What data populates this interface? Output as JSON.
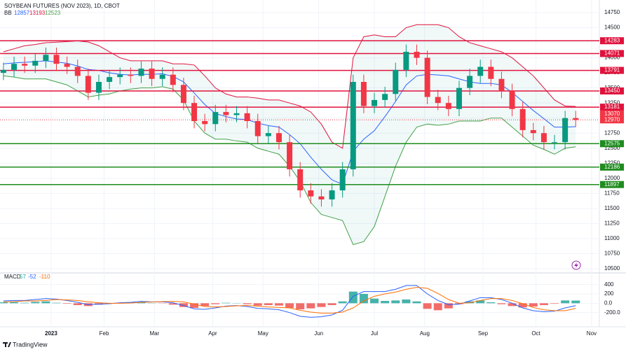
{
  "chart_data": {
    "type": "candlestick",
    "title": "SOYBEAN FUTURES (NOV 2023), 1D, CBOT",
    "bb": {
      "label": "BB",
      "values": [
        12857,
        13193,
        12523
      ]
    },
    "macd_header": {
      "label": "MACD",
      "values": [
        57,
        -52,
        -110
      ]
    },
    "brand": "TradingView",
    "x": [
      0,
      4,
      8,
      12,
      16,
      20,
      24,
      28,
      32,
      36,
      40,
      44,
      48,
      52,
      56,
      60,
      64,
      68,
      72,
      76,
      80,
      84,
      88,
      92,
      96,
      100,
      104,
      108,
      112,
      116,
      120,
      124,
      128,
      132,
      136,
      140,
      144,
      148,
      152,
      156,
      160,
      164,
      168,
      172,
      176,
      180,
      184,
      188,
      192,
      196,
      200,
      204,
      208,
      212,
      216
    ],
    "open": [
      13750,
      13800,
      13900,
      13870,
      13950,
      14050,
      13900,
      13850,
      13700,
      13420,
      13600,
      13680,
      13720,
      13700,
      13820,
      13650,
      13720,
      13550,
      13250,
      12950,
      12900,
      13100,
      13050,
      13080,
      12950,
      12700,
      12750,
      12600,
      12150,
      11800,
      11700,
      11650,
      11800,
      12150,
      13600,
      13200,
      13300,
      13400,
      13800,
      14100,
      14000,
      13350,
      13250,
      13150,
      13500,
      13700,
      13850,
      13650,
      13450,
      13150,
      12800,
      12750,
      12600,
      12600,
      13000
    ],
    "high": [
      13920,
      14020,
      14020,
      14070,
      14170,
      14170,
      14020,
      13970,
      13820,
      13720,
      13800,
      13840,
      13840,
      13940,
      13940,
      13840,
      13840,
      13670,
      13370,
      13070,
      13220,
      13220,
      13200,
      13200,
      13070,
      12870,
      12870,
      12720,
      12270,
      11920,
      11820,
      11920,
      12270,
      13720,
      13720,
      13420,
      13520,
      13920,
      14220,
      14220,
      14120,
      13470,
      13370,
      13620,
      13820,
      13970,
      13970,
      13770,
      13570,
      13270,
      12920,
      12870,
      12720,
      13120,
      13120
    ],
    "low": [
      13630,
      13680,
      13750,
      13750,
      13830,
      13780,
      13730,
      13580,
      13300,
      13300,
      13480,
      13560,
      13580,
      13580,
      13530,
      13530,
      13430,
      13130,
      12830,
      12780,
      12780,
      12930,
      12930,
      12830,
      12580,
      12580,
      12480,
      12030,
      11680,
      11580,
      11530,
      11530,
      11680,
      12030,
      13080,
      13080,
      13180,
      13280,
      13680,
      13880,
      13230,
      13130,
      13030,
      13030,
      13380,
      13580,
      13530,
      13330,
      13030,
      12680,
      12630,
      12480,
      12480,
      12480,
      12850
    ],
    "close": [
      13800,
      13900,
      13870,
      13950,
      14050,
      13900,
      13850,
      13700,
      13420,
      13600,
      13680,
      13720,
      13700,
      13820,
      13650,
      13720,
      13550,
      13250,
      12950,
      12900,
      13100,
      13050,
      13080,
      12950,
      12700,
      12750,
      12600,
      12150,
      11800,
      11700,
      11650,
      11800,
      12150,
      13600,
      13200,
      13300,
      13400,
      13800,
      14100,
      14000,
      13350,
      13250,
      13150,
      13500,
      13700,
      13850,
      13650,
      13450,
      13150,
      12800,
      12750,
      12600,
      12600,
      13000,
      12970
    ],
    "up_color": "#089981",
    "down_color": "#f23645",
    "bands": {
      "upper": [
        14100,
        14150,
        14200,
        14220,
        14250,
        14260,
        14270,
        14280,
        14262,
        14200,
        14100,
        14000,
        13950,
        13950,
        13950,
        13950,
        13900,
        13900,
        13880,
        13700,
        13500,
        13400,
        13350,
        13350,
        13330,
        13300,
        13300,
        13250,
        13200,
        13100,
        12900,
        12600,
        12500,
        14000,
        14350,
        14380,
        14350,
        14350,
        14500,
        14550,
        14550,
        14550,
        14500,
        14350,
        14250,
        14200,
        14150,
        14100,
        14000,
        13850,
        13700,
        13500,
        13300,
        13200,
        13193
      ],
      "basis": [
        13900,
        13915,
        13925,
        13935,
        13950,
        13930,
        13910,
        13865,
        13806,
        13790,
        13750,
        13725,
        13715,
        13725,
        13725,
        13735,
        13690,
        13600,
        13415,
        13225,
        13075,
        13025,
        12985,
        12975,
        12915,
        12875,
        12850,
        12725,
        12575,
        12350,
        12150,
        11975,
        11900,
        12450,
        12650,
        12790,
        13025,
        13275,
        13550,
        13700,
        13725,
        13715,
        13700,
        13650,
        13600,
        13575,
        13575,
        13550,
        13425,
        13275,
        13125,
        12990,
        12850,
        12850,
        12857
      ],
      "lower": [
        13700,
        13680,
        13650,
        13650,
        13650,
        13600,
        13550,
        13450,
        13350,
        13380,
        13400,
        13450,
        13480,
        13500,
        13500,
        13520,
        13480,
        13300,
        12950,
        12750,
        12650,
        12650,
        12620,
        12600,
        12500,
        12450,
        12400,
        12200,
        11950,
        11600,
        11400,
        11350,
        11300,
        10900,
        10950,
        11200,
        11700,
        12200,
        12600,
        12850,
        12900,
        12880,
        12900,
        12950,
        12950,
        12950,
        13000,
        13000,
        12850,
        12700,
        12550,
        12480,
        12400,
        12500,
        12523
      ],
      "band_color": "#e0123c",
      "basis_color": "#2962ff",
      "lower_color": "#43a047"
    },
    "levels": [
      {
        "value": 14283,
        "color": "#e0123c"
      },
      {
        "value": 14071,
        "color": "#e0123c"
      },
      {
        "value": 13791,
        "color": "#e0123c"
      },
      {
        "value": 13450,
        "color": "#e0123c"
      },
      {
        "value": 13181,
        "color": "#e0123c"
      },
      {
        "value": 12575,
        "color": "#1e8c1e"
      },
      {
        "value": 12186,
        "color": "#1e8c1e"
      },
      {
        "value": 11897,
        "color": "#1e8c1e"
      }
    ],
    "last_labels": [
      13070,
      12970
    ],
    "ylim": [
      10500,
      14750
    ],
    "yticks": [
      10500,
      10750,
      11000,
      11250,
      11500,
      11750,
      12000,
      12250,
      12500,
      12750,
      13000,
      13250,
      13500,
      13750,
      14000,
      14250,
      14500,
      14750
    ],
    "xlim": [
      -1.3,
      224.4
    ],
    "xticks": [
      {
        "value": 18,
        "label": "2023"
      },
      {
        "value": 38,
        "label": "Feb"
      },
      {
        "value": 57,
        "label": "Mar"
      },
      {
        "value": 79,
        "label": "Apr"
      },
      {
        "value": 98,
        "label": "May"
      },
      {
        "value": 119,
        "label": "Jun"
      },
      {
        "value": 140,
        "label": "Jul"
      },
      {
        "value": 159,
        "label": "Aug"
      },
      {
        "value": 181,
        "label": "Sep"
      },
      {
        "value": 201,
        "label": "Oct"
      },
      {
        "value": 222,
        "label": "Nov"
      }
    ],
    "macd": {
      "histogram": [
        20,
        25,
        10,
        30,
        40,
        10,
        -10,
        -40,
        -60,
        -30,
        -10,
        10,
        15,
        20,
        5,
        -5,
        -30,
        -80,
        -100,
        -60,
        -20,
        10,
        5,
        -20,
        -50,
        -40,
        -50,
        -100,
        -130,
        -110,
        -80,
        -40,
        40,
        250,
        200,
        100,
        50,
        60,
        80,
        40,
        -120,
        -150,
        -110,
        -20,
        40,
        60,
        20,
        -20,
        -60,
        -90,
        -70,
        -40,
        -10,
        60,
        57
      ],
      "macd": [
        50,
        60,
        60,
        80,
        100,
        90,
        60,
        20,
        -30,
        -20,
        -10,
        10,
        20,
        40,
        30,
        30,
        10,
        -50,
        -120,
        -130,
        -100,
        -60,
        -50,
        -70,
        -110,
        -120,
        -140,
        -200,
        -280,
        -300,
        -290,
        -250,
        -150,
        150,
        250,
        250,
        250,
        300,
        380,
        380,
        200,
        60,
        -30,
        -20,
        50,
        120,
        120,
        80,
        0,
        -100,
        -160,
        -180,
        -170,
        -100,
        -52
      ],
      "signal": [
        30,
        35,
        50,
        50,
        60,
        80,
        70,
        60,
        30,
        10,
        0,
        0,
        5,
        20,
        25,
        35,
        40,
        30,
        -20,
        -70,
        -80,
        -70,
        -55,
        -50,
        -60,
        -80,
        -90,
        -100,
        -150,
        -190,
        -210,
        -210,
        -190,
        -100,
        50,
        150,
        200,
        240,
        300,
        340,
        320,
        210,
        80,
        0,
        10,
        60,
        100,
        100,
        60,
        -10,
        -90,
        -140,
        -160,
        -160,
        -110
      ],
      "pos_color": "#26a69a",
      "neg_color": "#ef5350",
      "macd_color": "#2962ff",
      "signal_color": "#ff6d00",
      "ylim": [
        -400,
        500
      ],
      "yticks": [
        {
          "value": 400,
          "label": "400"
        },
        {
          "value": 200,
          "label": "200"
        },
        {
          "value": 0,
          "label": "0.0"
        },
        {
          "value": -200,
          "label": "-200.0"
        }
      ]
    }
  }
}
